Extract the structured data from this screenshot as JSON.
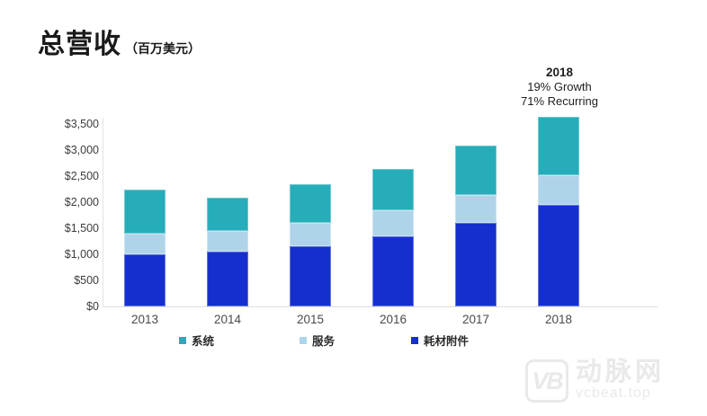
{
  "title": {
    "text": "总营收",
    "unit": "（百万美元）"
  },
  "annotation": {
    "year": "2018",
    "line1": "19% Growth",
    "line2": "71% Recurring"
  },
  "chart_data": {
    "type": "bar",
    "stacked": true,
    "title": "总营收（百万美元）",
    "xlabel": "",
    "ylabel": "",
    "ylim": [
      0,
      3500
    ],
    "grid": false,
    "categories": [
      "2013",
      "2014",
      "2015",
      "2016",
      "2017",
      "2018"
    ],
    "series": [
      {
        "key": "instruments-accessories",
        "name": "耗材附件",
        "color": "#152FCE",
        "values": [
          1000,
          1050,
          1150,
          1350,
          1600,
          1950
        ]
      },
      {
        "key": "services",
        "name": "服务",
        "color": "#AFD4EA",
        "values": [
          400,
          400,
          450,
          500,
          550,
          575
        ]
      },
      {
        "key": "systems",
        "name": "系统",
        "color": "#26ADB9",
        "values": [
          850,
          650,
          750,
          800,
          950,
          1125
        ]
      }
    ],
    "totals": [
      2250,
      2100,
      2350,
      2650,
      3100,
      3650
    ],
    "y_ticks": [
      {
        "label": "$3,500",
        "value": 3500
      },
      {
        "label": "$3,000",
        "value": 3000
      },
      {
        "label": "$2,500",
        "value": 2500
      },
      {
        "label": "$2,000",
        "value": 2000
      },
      {
        "label": "$1,500",
        "value": 1500
      },
      {
        "label": "$1,000",
        "value": 1000
      },
      {
        "label": "$500",
        "value": 500
      },
      {
        "label": "$0",
        "value": 0
      }
    ],
    "legend": [
      {
        "key": "systems",
        "name": "系统",
        "color": "#26ADB9"
      },
      {
        "key": "services",
        "name": "服务",
        "color": "#AFD4EA"
      },
      {
        "key": "instruments-accessories",
        "name": "耗材附件",
        "color": "#152FCE"
      }
    ],
    "legend_position": "bottom"
  },
  "watermark": {
    "logo": "VB",
    "name": "动脉网",
    "url": "vcbeat.top"
  }
}
